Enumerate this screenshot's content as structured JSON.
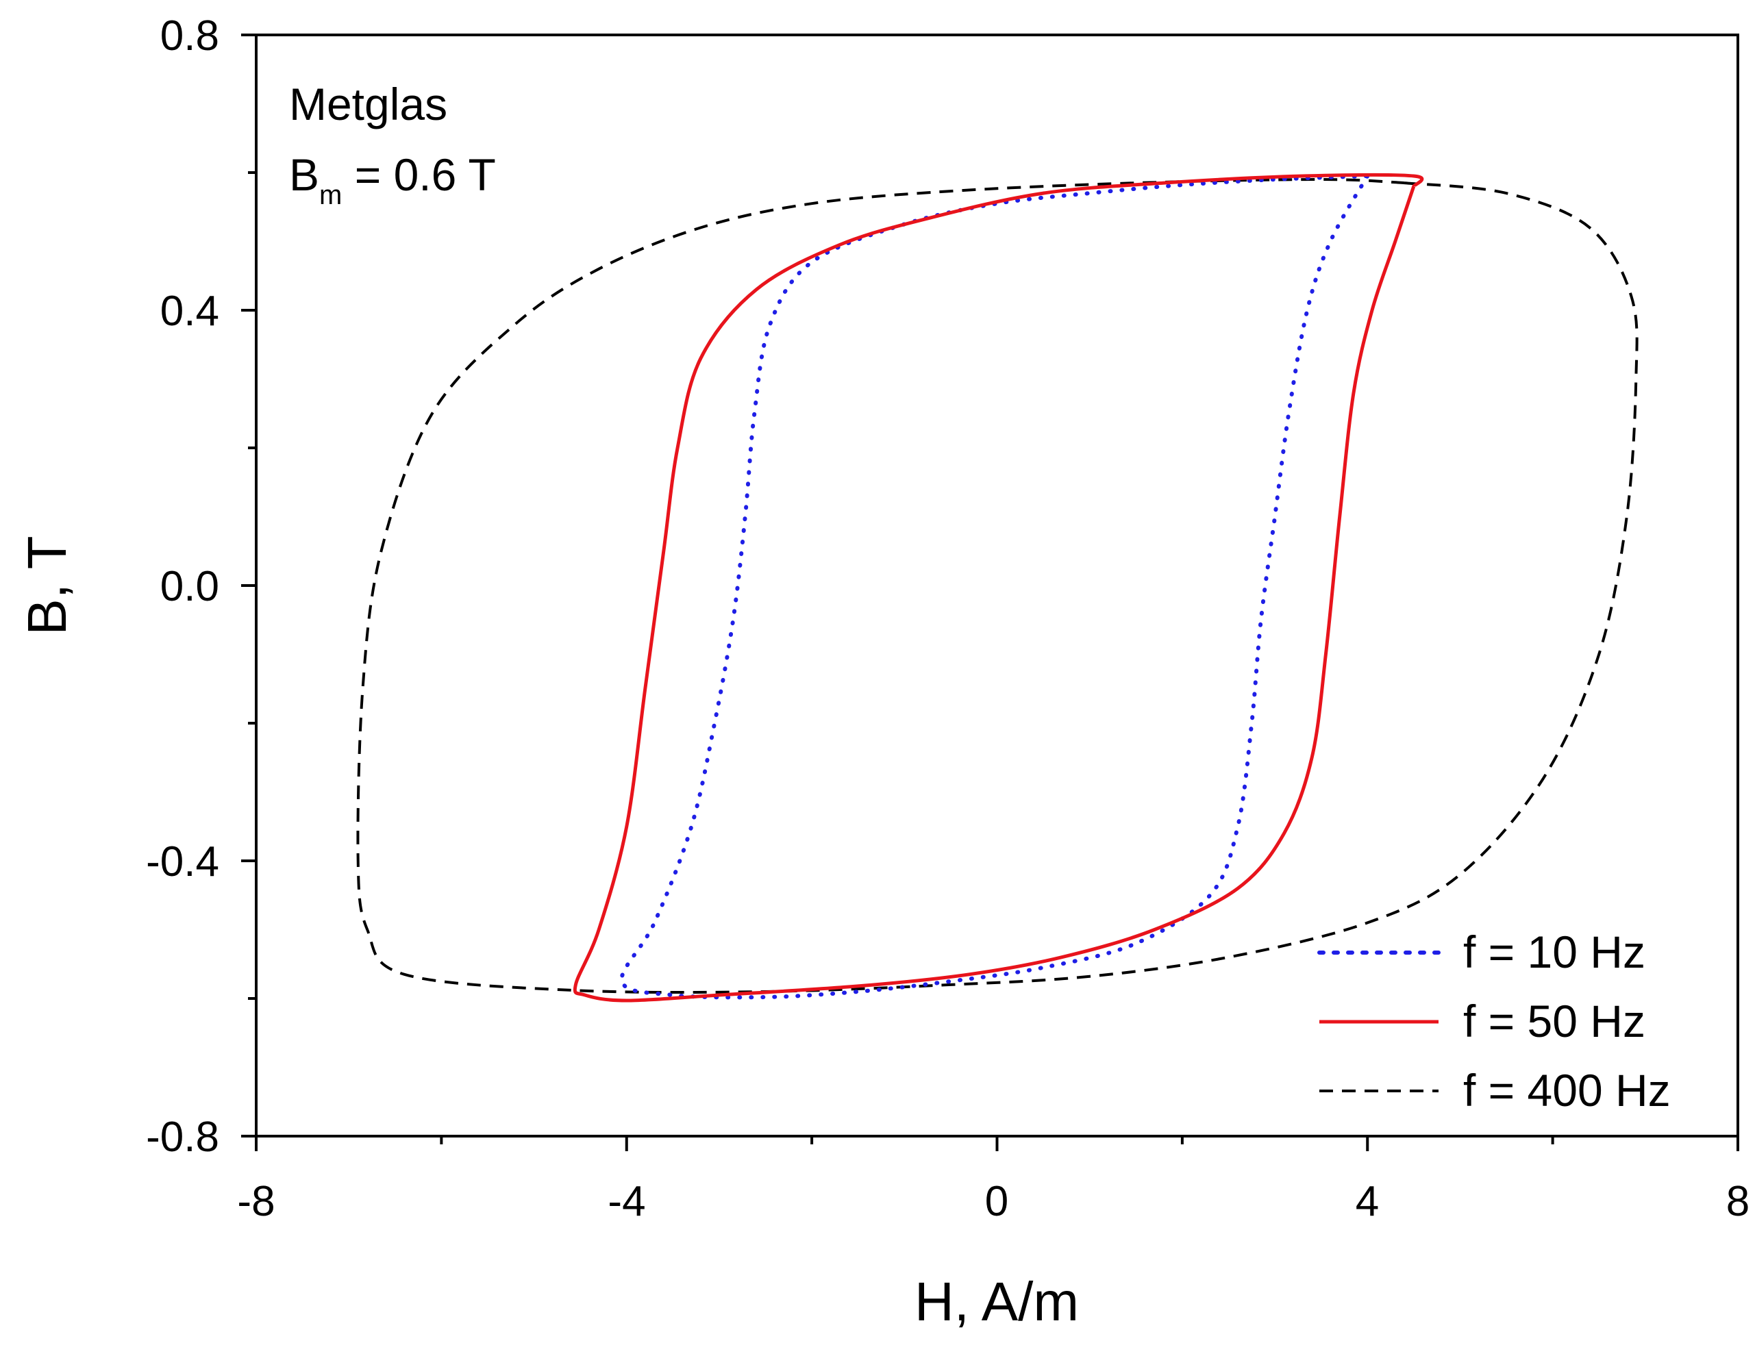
{
  "chart_data": {
    "type": "line",
    "xlabel": "H, A/m",
    "ylabel": "B, T",
    "xlim": [
      -8,
      8
    ],
    "ylim": [
      -0.8,
      0.8
    ],
    "x_ticks": [
      -8,
      -4,
      0,
      4,
      8
    ],
    "x_tick_labels": [
      "-8",
      "-4",
      "0",
      "4",
      "8"
    ],
    "y_ticks": [
      0.8,
      0.4,
      0.0,
      -0.4,
      -0.8
    ],
    "y_tick_labels": [
      "0.8",
      "0.4",
      "0.0",
      "-0.4",
      "-0.8"
    ],
    "grid": false,
    "annotations": {
      "material": "Metglas",
      "bm_symbol": "B",
      "bm_subscript": "m",
      "bm_value": " = 0.6 T"
    },
    "legend_position": "bottom-right",
    "series": [
      {
        "name": "f = 10 Hz",
        "color": "#1f1fe6",
        "style": "dotted",
        "points": [
          [
            4.0,
            0.595
          ],
          [
            3.6,
            0.5
          ],
          [
            3.35,
            0.4
          ],
          [
            3.15,
            0.25
          ],
          [
            3.0,
            0.1
          ],
          [
            2.85,
            -0.05
          ],
          [
            2.75,
            -0.2
          ],
          [
            2.6,
            -0.35
          ],
          [
            2.3,
            -0.45
          ],
          [
            1.5,
            -0.52
          ],
          [
            0.5,
            -0.555
          ],
          [
            -0.5,
            -0.575
          ],
          [
            -1.5,
            -0.59
          ],
          [
            -2.5,
            -0.598
          ],
          [
            -3.5,
            -0.595
          ],
          [
            -4.05,
            -0.575
          ],
          [
            -3.7,
            -0.49
          ],
          [
            -3.3,
            -0.35
          ],
          [
            -3.05,
            -0.2
          ],
          [
            -2.85,
            -0.05
          ],
          [
            -2.72,
            0.1
          ],
          [
            -2.62,
            0.25
          ],
          [
            -2.45,
            0.38
          ],
          [
            -2.0,
            0.47
          ],
          [
            -1.0,
            0.525
          ],
          [
            0.0,
            0.555
          ],
          [
            1.0,
            0.57
          ],
          [
            2.0,
            0.582
          ],
          [
            3.0,
            0.59
          ],
          [
            4.0,
            0.595
          ]
        ]
      },
      {
        "name": "f = 50 Hz",
        "color": "#e8141c",
        "style": "solid",
        "points": [
          [
            4.5,
            0.58
          ],
          [
            4.3,
            0.5
          ],
          [
            4.05,
            0.4
          ],
          [
            3.85,
            0.28
          ],
          [
            3.7,
            0.1
          ],
          [
            3.55,
            -0.1
          ],
          [
            3.4,
            -0.25
          ],
          [
            3.1,
            -0.36
          ],
          [
            2.6,
            -0.44
          ],
          [
            1.7,
            -0.5
          ],
          [
            0.7,
            -0.54
          ],
          [
            -0.3,
            -0.565
          ],
          [
            -1.5,
            -0.582
          ],
          [
            -3.0,
            -0.595
          ],
          [
            -4.0,
            -0.603
          ],
          [
            -4.45,
            -0.595
          ],
          [
            -4.55,
            -0.58
          ],
          [
            -4.3,
            -0.5
          ],
          [
            -4.0,
            -0.35
          ],
          [
            -3.8,
            -0.15
          ],
          [
            -3.6,
            0.05
          ],
          [
            -3.45,
            0.2
          ],
          [
            -3.2,
            0.33
          ],
          [
            -2.6,
            0.43
          ],
          [
            -1.7,
            0.495
          ],
          [
            -0.7,
            0.535
          ],
          [
            0.5,
            0.57
          ],
          [
            1.8,
            0.585
          ],
          [
            3.3,
            0.595
          ],
          [
            4.5,
            0.595
          ],
          [
            4.5,
            0.58
          ]
        ]
      },
      {
        "name": "f = 400 Hz",
        "color": "#000000",
        "style": "dashed",
        "points": [
          [
            4.4,
            0.585
          ],
          [
            5.5,
            0.57
          ],
          [
            6.4,
            0.52
          ],
          [
            6.85,
            0.42
          ],
          [
            6.9,
            0.3
          ],
          [
            6.8,
            0.1
          ],
          [
            6.5,
            -0.1
          ],
          [
            5.9,
            -0.28
          ],
          [
            5.0,
            -0.42
          ],
          [
            4.0,
            -0.49
          ],
          [
            2.5,
            -0.54
          ],
          [
            1.0,
            -0.568
          ],
          [
            -0.5,
            -0.58
          ],
          [
            -2.5,
            -0.59
          ],
          [
            -4.6,
            -0.588
          ],
          [
            -6.4,
            -0.565
          ],
          [
            -6.8,
            -0.5
          ],
          [
            -6.9,
            -0.4
          ],
          [
            -6.85,
            -0.15
          ],
          [
            -6.65,
            0.05
          ],
          [
            -6.1,
            0.25
          ],
          [
            -5.2,
            0.38
          ],
          [
            -4.3,
            0.46
          ],
          [
            -3.2,
            0.52
          ],
          [
            -2.0,
            0.555
          ],
          [
            -0.5,
            0.573
          ],
          [
            1.5,
            0.585
          ],
          [
            3.5,
            0.59
          ],
          [
            4.4,
            0.585
          ]
        ]
      }
    ]
  }
}
